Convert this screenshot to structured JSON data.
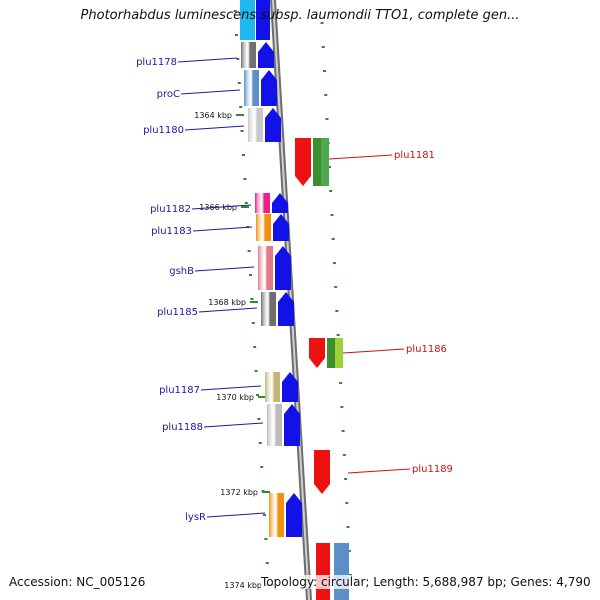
{
  "title": "Photorhabdus luminescens subsp. laumondii TTO1, complete gen...",
  "footer": {
    "accession": "Accession: NC_005126",
    "topology": "Topology: circular; Length: 5,688,987 bp; Genes: 4,790"
  },
  "colors": {
    "backbone": "#8a8a8a",
    "forward_label": "#1a1aa6",
    "reverse_label": "#cc1111",
    "tick": "#2e8b2e",
    "cds_blue": "#1212e8",
    "cds_red": "#ee1111"
  },
  "ticks": [
    "1364 kbp",
    "1366 kbp",
    "1368 kbp",
    "1370 kbp",
    "1372 kbp",
    "1374 kbp"
  ],
  "forward_genes": [
    {
      "label": "plu1178",
      "color": "#707070"
    },
    {
      "label": "proC",
      "color": "#5b8fc8"
    },
    {
      "label": "plu1180",
      "color": "#c8c8c8"
    },
    {
      "label": "plu1182",
      "color": "#ee1f8a"
    },
    {
      "label": "plu1183",
      "color": "#f0900e"
    },
    {
      "label": "gshB",
      "color": "#e07a8a"
    },
    {
      "label": "plu1185",
      "color": "#6e6e6e"
    },
    {
      "label": "plu1187",
      "color": "#c2b77a"
    },
    {
      "label": "plu1188",
      "color": "#bcbcbc"
    },
    {
      "label": "lysR",
      "color": "#f0900e"
    }
  ],
  "reverse_genes": [
    {
      "label": "plu1181",
      "color": "#4fa84f"
    },
    {
      "label": "plu1186",
      "color": "#9ed23a"
    },
    {
      "label": "plu1189",
      "color": "#ee1111"
    }
  ]
}
